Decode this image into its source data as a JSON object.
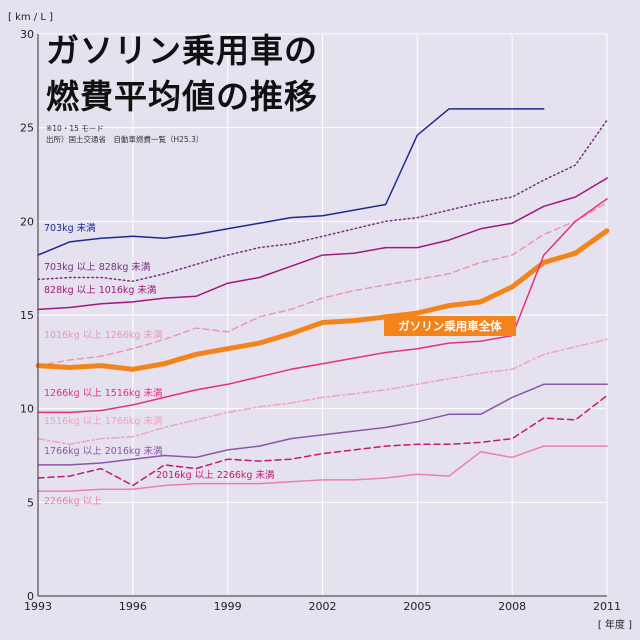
{
  "chart_data": {
    "type": "line",
    "title_lines": [
      "ガソリン乗用車の",
      "燃費平均値の推移"
    ],
    "notes": [
      "※10・15 モード",
      "出所）国土交通省　自動車燃費一覧（H25.3）"
    ],
    "y_unit": "[ km / L ]",
    "x_unit": "[ 年度 ]",
    "xlim": [
      1993,
      2011
    ],
    "ylim": [
      0,
      30
    ],
    "x_ticks": [
      1993,
      1996,
      1999,
      2002,
      2005,
      2008,
      2011
    ],
    "y_ticks": [
      0,
      5,
      10,
      15,
      20,
      25,
      30
    ],
    "grid": true,
    "x": [
      1993,
      1994,
      1995,
      1996,
      1997,
      1998,
      1999,
      2000,
      2001,
      2002,
      2003,
      2004,
      2005,
      2006,
      2007,
      2008,
      2009,
      2010,
      2011
    ],
    "series": [
      {
        "name": "703kg 未満",
        "color": "#1e2a8c",
        "dash": "solid",
        "width": 1.5,
        "values": [
          18.2,
          18.9,
          19.1,
          19.2,
          19.1,
          19.3,
          19.6,
          19.9,
          20.2,
          20.3,
          20.6,
          20.9,
          24.6,
          26.0,
          26.0,
          26.0,
          26.0,
          null,
          null
        ]
      },
      {
        "name": "703kg 以上 828kg 未満",
        "color": "#7a2f7d",
        "dash": "dot",
        "width": 1.5,
        "values": [
          16.9,
          17.0,
          17.0,
          16.8,
          17.2,
          17.7,
          18.2,
          18.6,
          18.8,
          19.2,
          19.6,
          20.0,
          20.2,
          20.6,
          21.0,
          21.3,
          22.2,
          23.0,
          25.4
        ]
      },
      {
        "name": "828kg 以上 1016kg 未満",
        "color": "#a0197c",
        "dash": "solid",
        "width": 1.5,
        "values": [
          15.3,
          15.4,
          15.6,
          15.7,
          15.9,
          16.0,
          16.7,
          17.0,
          17.6,
          18.2,
          18.3,
          18.6,
          18.6,
          19.0,
          19.6,
          19.9,
          20.8,
          21.3,
          22.3
        ]
      },
      {
        "name": "1016kg 以上 1266kg 未満",
        "color": "#e898b4",
        "dash": "dash",
        "width": 1.5,
        "values": [
          12.3,
          12.6,
          12.8,
          13.2,
          13.7,
          14.3,
          14.1,
          14.9,
          15.3,
          15.9,
          16.3,
          16.6,
          16.9,
          17.2,
          17.8,
          18.2,
          19.3,
          20.0,
          21.0
        ]
      },
      {
        "name": "ガソリン乗用車全体",
        "color": "#f3841c",
        "dash": "solid",
        "width": 5,
        "values": [
          12.3,
          12.2,
          12.3,
          12.1,
          12.4,
          12.9,
          13.2,
          13.5,
          14.0,
          14.6,
          14.7,
          14.9,
          15.1,
          15.5,
          15.7,
          16.5,
          17.8,
          18.3,
          19.5
        ]
      },
      {
        "name": "1266kg 以上 1516kg 未満",
        "color": "#e3327c",
        "dash": "solid",
        "width": 1.5,
        "values": [
          9.8,
          9.8,
          9.9,
          10.2,
          10.6,
          11.0,
          11.3,
          11.7,
          12.1,
          12.4,
          12.7,
          13.0,
          13.2,
          13.5,
          13.6,
          13.9,
          18.2,
          20.0,
          21.2
        ]
      },
      {
        "name": "1516kg 以上 1766kg 未満",
        "color": "#f0a2c2",
        "dash": "dashdot",
        "width": 1.5,
        "values": [
          8.4,
          8.1,
          8.4,
          8.5,
          9.0,
          9.4,
          9.8,
          10.1,
          10.3,
          10.6,
          10.8,
          11.0,
          11.3,
          11.6,
          11.9,
          12.1,
          12.9,
          13.3,
          13.7
        ]
      },
      {
        "name": "1766kg 以上 2016kg 未満",
        "color": "#8a57a8",
        "dash": "solid",
        "width": 1.5,
        "values": [
          7.0,
          7.0,
          7.1,
          7.3,
          7.5,
          7.4,
          7.8,
          8.0,
          8.4,
          8.6,
          8.8,
          9.0,
          9.3,
          9.7,
          9.7,
          10.6,
          11.3,
          11.3,
          11.3
        ]
      },
      {
        "name": "2016kg 以上 2266kg 未満",
        "color": "#c21a74",
        "dash": "dash",
        "width": 1.5,
        "values": [
          6.3,
          6.4,
          6.8,
          5.9,
          7.0,
          6.8,
          7.3,
          7.2,
          7.3,
          7.6,
          7.8,
          8.0,
          8.1,
          8.1,
          8.2,
          8.4,
          9.5,
          9.4,
          10.7
        ]
      },
      {
        "name": "2266kg 以上",
        "color": "#ec7fb0",
        "dash": "solid",
        "width": 1.5,
        "values": [
          5.6,
          5.6,
          5.7,
          5.7,
          5.9,
          6.0,
          6.0,
          6.0,
          6.1,
          6.2,
          6.2,
          6.3,
          6.5,
          6.4,
          7.7,
          7.4,
          8.0,
          8.0,
          8.0
        ]
      }
    ]
  }
}
